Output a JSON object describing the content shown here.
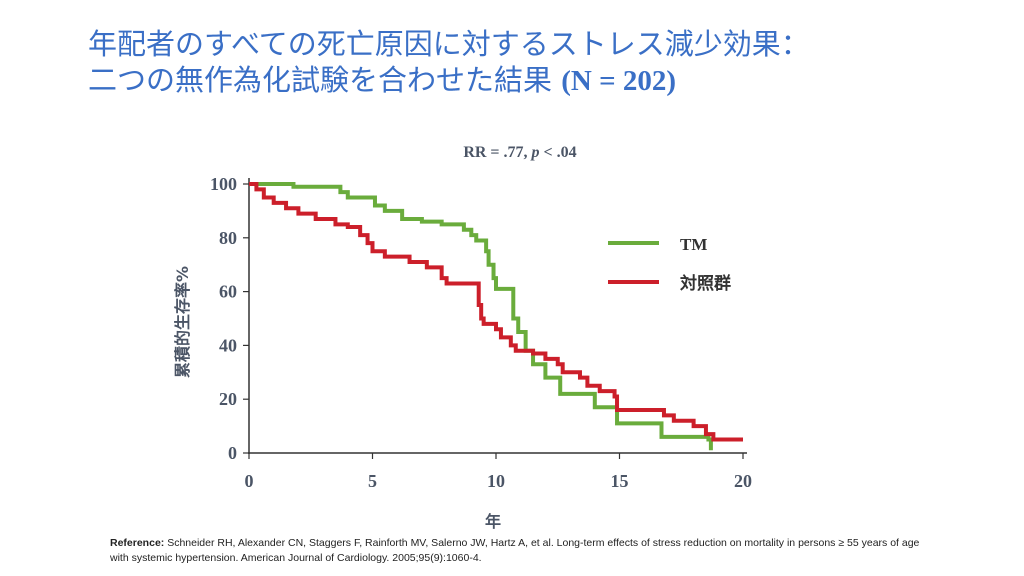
{
  "title": {
    "line1": "年配者のすべての死亡原因に対するストレス減少効果：",
    "line2": "二つの無作為化試験を合わせた結果",
    "line2_bold": "(N = 202)"
  },
  "chart_data": {
    "type": "line",
    "subtitle": "RR = .77, p < .04",
    "xlabel": "年",
    "ylabel": "累積的生存率%",
    "xlim": [
      0,
      20
    ],
    "ylim": [
      0,
      100
    ],
    "xticks": [
      "0",
      "5",
      "10",
      "15",
      "20"
    ],
    "yticks": [
      "0",
      "20",
      "40",
      "60",
      "80",
      "100"
    ],
    "legend_position": "right",
    "grid": false,
    "series": [
      {
        "name": "TM",
        "color": "#6aac3c",
        "points": [
          [
            0,
            100
          ],
          [
            1.8,
            99
          ],
          [
            3.7,
            97
          ],
          [
            4.0,
            95
          ],
          [
            5.1,
            92
          ],
          [
            5.5,
            90
          ],
          [
            6.2,
            87
          ],
          [
            7.0,
            86
          ],
          [
            7.8,
            85
          ],
          [
            8.7,
            83
          ],
          [
            9.0,
            81
          ],
          [
            9.2,
            79
          ],
          [
            9.6,
            75
          ],
          [
            9.7,
            70
          ],
          [
            9.9,
            65
          ],
          [
            10.0,
            61
          ],
          [
            10.7,
            50
          ],
          [
            10.9,
            45
          ],
          [
            11.2,
            38
          ],
          [
            11.5,
            33
          ],
          [
            12.0,
            28
          ],
          [
            12.6,
            22
          ],
          [
            14.0,
            17
          ],
          [
            14.9,
            11
          ],
          [
            16.7,
            6
          ],
          [
            18.6,
            5
          ],
          [
            18.7,
            1
          ]
        ]
      },
      {
        "name": "対照群",
        "color": "#cc1f2a",
        "points": [
          [
            0,
            100
          ],
          [
            0.3,
            98
          ],
          [
            0.6,
            95
          ],
          [
            1.0,
            93
          ],
          [
            1.5,
            91
          ],
          [
            2.0,
            89
          ],
          [
            2.7,
            87
          ],
          [
            3.5,
            85
          ],
          [
            4.0,
            84
          ],
          [
            4.5,
            81
          ],
          [
            4.8,
            78
          ],
          [
            5.0,
            75
          ],
          [
            5.5,
            73
          ],
          [
            6.5,
            71
          ],
          [
            7.2,
            69
          ],
          [
            7.8,
            65
          ],
          [
            8.0,
            63
          ],
          [
            9.2,
            63
          ],
          [
            9.3,
            55
          ],
          [
            9.4,
            50
          ],
          [
            9.5,
            48
          ],
          [
            10.0,
            46
          ],
          [
            10.2,
            43
          ],
          [
            10.6,
            40
          ],
          [
            10.8,
            38
          ],
          [
            11.5,
            37
          ],
          [
            12.0,
            35
          ],
          [
            12.5,
            33
          ],
          [
            12.7,
            30
          ],
          [
            13.4,
            28
          ],
          [
            13.7,
            25
          ],
          [
            14.2,
            23
          ],
          [
            14.8,
            21
          ],
          [
            14.9,
            16
          ],
          [
            16.5,
            16
          ],
          [
            16.8,
            14
          ],
          [
            17.2,
            12
          ],
          [
            18.0,
            10
          ],
          [
            18.5,
            7
          ],
          [
            18.8,
            5
          ],
          [
            20,
            5
          ]
        ]
      }
    ]
  },
  "reference": {
    "label": "Reference:",
    "text": " Schneider RH, Alexander CN, Staggers F, Rainforth MV, Salerno JW, Hartz A, et al. Long-term effects of stress reduction on mortality in persons ≥ 55 years of age with systemic hypertension. American Journal of Cardiology. 2005;95(9):1060-4."
  }
}
